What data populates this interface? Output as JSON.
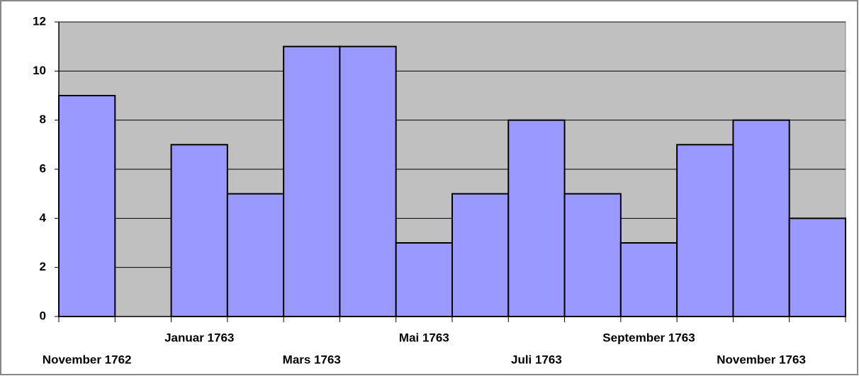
{
  "chart_data": {
    "type": "bar",
    "categories": [
      "November 1762",
      null,
      "Januar 1763",
      null,
      "Mars 1763",
      null,
      "Mai 1763",
      null,
      "Juli 1763",
      null,
      "September 1763",
      null,
      "November 1763",
      null
    ],
    "values": [
      9,
      0,
      7,
      5,
      11,
      11,
      3,
      5,
      8,
      5,
      3,
      7,
      8,
      4
    ],
    "color": "#9999ff",
    "plot_background": "#c0c0c0",
    "ylim": [
      0,
      12
    ],
    "yticks": [
      0,
      2,
      4,
      6,
      8,
      10,
      12
    ],
    "grid": true
  }
}
